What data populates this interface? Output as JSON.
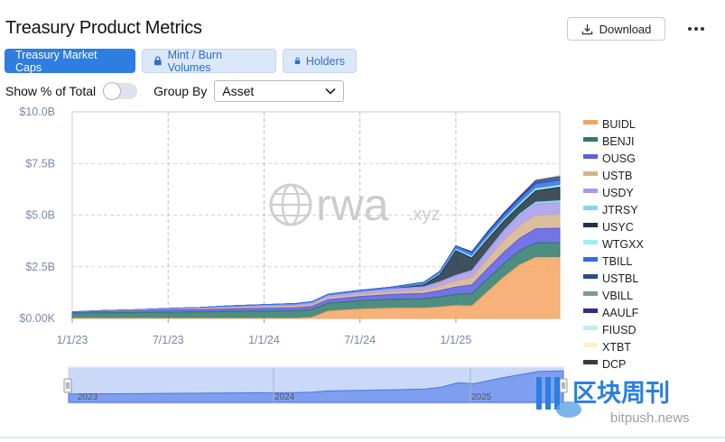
{
  "header": {
    "title": "Treasury Product Metrics",
    "download_label": "Download"
  },
  "tabs": [
    {
      "label": "Treasury Market Caps",
      "active": true
    },
    {
      "label": "Mint / Burn Volumes",
      "active": false,
      "locked": true
    },
    {
      "label": "Holders",
      "active": false,
      "locked": true
    }
  ],
  "controls": {
    "show_percent_label": "Show % of Total",
    "show_percent_on": false,
    "group_by_label": "Group By",
    "group_by_value": "Asset"
  },
  "watermark": {
    "text": "rwa",
    "suffix": ".xyz"
  },
  "brand": {
    "name": "区块周刊",
    "url": "bitpush.news"
  },
  "navigator": {
    "labels": [
      "2023",
      "2024",
      "2025"
    ]
  },
  "chart_data": {
    "type": "area",
    "stacked": true,
    "title": "Treasury Product Metrics",
    "y_ticks": [
      "$0.00K",
      "$2.5B",
      "$5.0B",
      "$7.5B",
      "$10.0B"
    ],
    "x_ticks": [
      "1/1/23",
      "7/1/23",
      "1/1/24",
      "7/1/24",
      "1/1/25"
    ],
    "ylim": [
      0,
      10
    ],
    "y_unit": "$B",
    "x": [
      "Jan 2023",
      "Mar 2023",
      "May 2023",
      "Jul 2023",
      "Sep 2023",
      "Nov 2023",
      "Jan 2024",
      "Mar 2024",
      "Apr 2024",
      "May 2024",
      "Jul 2024",
      "Sep 2024",
      "Nov 2024",
      "Dec 2024",
      "Jan 2025",
      "Feb 2025",
      "Mar 2025",
      "Apr 2025",
      "May 2025",
      "Jun 2025",
      "Jul 2025"
    ],
    "series": [
      {
        "name": "BUIDL",
        "color": "#f4a462",
        "values": [
          0,
          0,
          0,
          0,
          0,
          0,
          0,
          0,
          0.05,
          0.35,
          0.45,
          0.5,
          0.5,
          0.55,
          0.62,
          0.6,
          1.3,
          2.0,
          2.6,
          2.95,
          2.95
        ]
      },
      {
        "name": "BENJI",
        "color": "#2f7a6a",
        "values": [
          0.25,
          0.27,
          0.28,
          0.3,
          0.32,
          0.34,
          0.36,
          0.37,
          0.38,
          0.39,
          0.41,
          0.43,
          0.45,
          0.5,
          0.55,
          0.6,
          0.62,
          0.65,
          0.68,
          0.7,
          0.72
        ]
      },
      {
        "name": "OUSG",
        "color": "#5b5ce0",
        "values": [
          0.05,
          0.07,
          0.08,
          0.1,
          0.11,
          0.12,
          0.13,
          0.14,
          0.15,
          0.17,
          0.2,
          0.23,
          0.26,
          0.3,
          0.35,
          0.42,
          0.5,
          0.55,
          0.6,
          0.68,
          0.7
        ]
      },
      {
        "name": "USTB",
        "color": "#d5b48c",
        "values": [
          0,
          0.01,
          0.02,
          0.03,
          0.04,
          0.05,
          0.06,
          0.07,
          0.08,
          0.09,
          0.1,
          0.12,
          0.14,
          0.2,
          0.28,
          0.35,
          0.45,
          0.55,
          0.6,
          0.65,
          0.65
        ]
      },
      {
        "name": "USDY",
        "color": "#a899ea",
        "values": [
          0,
          0,
          0.01,
          0.01,
          0.02,
          0.05,
          0.07,
          0.08,
          0.09,
          0.1,
          0.12,
          0.15,
          0.18,
          0.22,
          0.28,
          0.35,
          0.4,
          0.45,
          0.5,
          0.55,
          0.58
        ]
      },
      {
        "name": "JTRSY",
        "color": "#7fd8f0",
        "values": [
          0,
          0,
          0,
          0,
          0,
          0,
          0,
          0,
          0,
          0,
          0,
          0,
          0,
          0,
          0,
          0,
          0.02,
          0.05,
          0.08,
          0.1,
          0.1
        ]
      },
      {
        "name": "USYC",
        "color": "#1f3142",
        "values": [
          0,
          0,
          0,
          0,
          0,
          0,
          0,
          0,
          0,
          0,
          0,
          0,
          0.1,
          0.35,
          1.2,
          0.6,
          0.55,
          0.45,
          0.4,
          0.55,
          0.65
        ]
      },
      {
        "name": "WTGXX",
        "color": "#9cf0ef",
        "values": [
          0,
          0,
          0,
          0,
          0,
          0,
          0,
          0,
          0,
          0,
          0,
          0,
          0.02,
          0.04,
          0.06,
          0.07,
          0.08,
          0.08,
          0.09,
          0.09,
          0.09
        ]
      },
      {
        "name": "TBILL",
        "color": "#2f6de6",
        "values": [
          0.02,
          0.03,
          0.03,
          0.04,
          0.04,
          0.05,
          0.05,
          0.06,
          0.06,
          0.07,
          0.08,
          0.09,
          0.1,
          0.12,
          0.15,
          0.18,
          0.2,
          0.22,
          0.23,
          0.24,
          0.25
        ]
      },
      {
        "name": "USTBL",
        "color": "#294a8a",
        "values": [
          0,
          0,
          0,
          0,
          0,
          0,
          0,
          0,
          0,
          0,
          0,
          0,
          0,
          0,
          0.02,
          0.04,
          0.05,
          0.05,
          0.06,
          0.06,
          0.06
        ]
      },
      {
        "name": "VBILL",
        "color": "#7f9a90",
        "values": [
          0,
          0,
          0,
          0,
          0,
          0,
          0,
          0,
          0,
          0,
          0,
          0,
          0,
          0,
          0,
          0,
          0,
          0,
          0,
          0.03,
          0.04
        ]
      },
      {
        "name": "AAULF",
        "color": "#2e2d8a",
        "values": [
          0,
          0,
          0,
          0,
          0,
          0,
          0,
          0,
          0,
          0,
          0,
          0,
          0,
          0,
          0,
          0.02,
          0.04,
          0.05,
          0.06,
          0.07,
          0.07
        ]
      },
      {
        "name": "FIUSD",
        "color": "#bfeef3",
        "values": [
          0,
          0,
          0,
          0,
          0,
          0,
          0,
          0,
          0,
          0,
          0,
          0,
          0,
          0,
          0,
          0,
          0,
          0.01,
          0.02,
          0.02,
          0.03
        ]
      },
      {
        "name": "XTBT",
        "color": "#faf1c9",
        "values": [
          0,
          0,
          0,
          0,
          0,
          0,
          0,
          0,
          0,
          0,
          0,
          0,
          0,
          0,
          0,
          0,
          0,
          0.01,
          0.01,
          0.01,
          0.01
        ]
      },
      {
        "name": "DCP",
        "color": "#3a3a3a",
        "values": [
          0,
          0,
          0,
          0,
          0,
          0,
          0,
          0,
          0,
          0,
          0,
          0,
          0,
          0,
          0,
          0,
          0,
          0,
          0,
          0.01,
          0.01
        ]
      }
    ]
  }
}
